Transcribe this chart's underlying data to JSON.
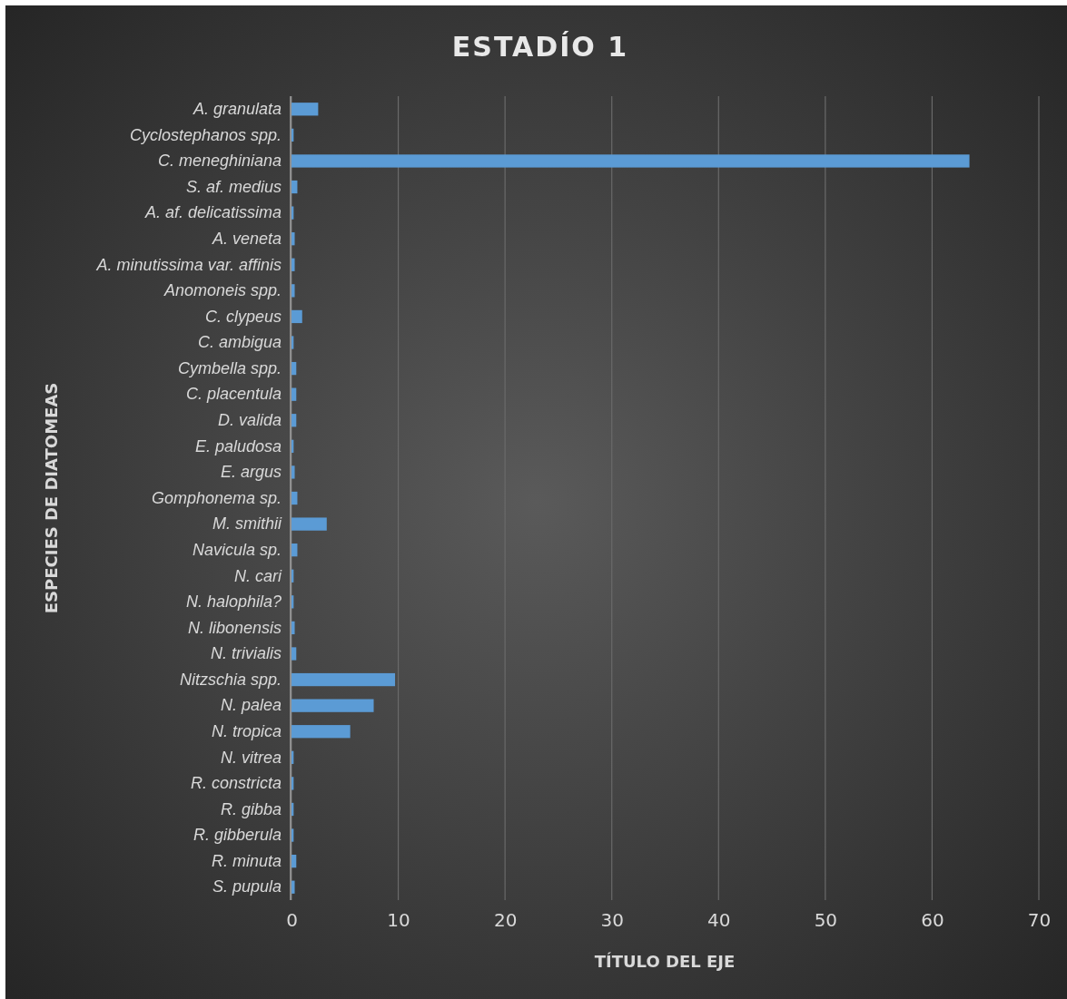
{
  "chart_data": {
    "type": "bar",
    "orientation": "horizontal",
    "title": "ESTADÍO 1",
    "xlabel": "TÍTULO DEL EJE",
    "ylabel": "ESPECIES DE DIATOMEAS",
    "categories": [
      "A. granulata",
      "Cyclostephanos spp.",
      "C. meneghiniana",
      "S. af. medius",
      "A. af. delicatissima",
      "A. veneta",
      "A. minutissima var. affinis",
      "Anomoneis spp.",
      "C. clypeus",
      "C. ambigua",
      "Cymbella spp.",
      "C. placentula",
      "D. valida",
      "E. paludosa",
      "E. argus",
      "Gomphonema sp.",
      "M. smithii",
      "Navicula sp.",
      "N. cari",
      "N. halophila?",
      "N. libonensis",
      "N. trivialis",
      "Nitzschia spp.",
      "N. palea",
      "N. tropica",
      "N. vitrea",
      "R. constricta",
      "R. gibba",
      "R. gibberula",
      "R. minuta",
      "S. pupula"
    ],
    "values": [
      2.5,
      0.2,
      63.5,
      0.55,
      0.2,
      0.3,
      0.3,
      0.3,
      1.0,
      0.2,
      0.45,
      0.45,
      0.45,
      0.2,
      0.3,
      0.55,
      3.3,
      0.55,
      0.2,
      0.2,
      0.3,
      0.45,
      9.7,
      7.7,
      5.5,
      0.2,
      0.2,
      0.2,
      0.2,
      0.45,
      0.3
    ],
    "color": "#5b9bd5",
    "xlim": [
      0,
      70
    ],
    "xticks": [
      0,
      10,
      20,
      30,
      40,
      50,
      60,
      70
    ],
    "grid": "x"
  }
}
